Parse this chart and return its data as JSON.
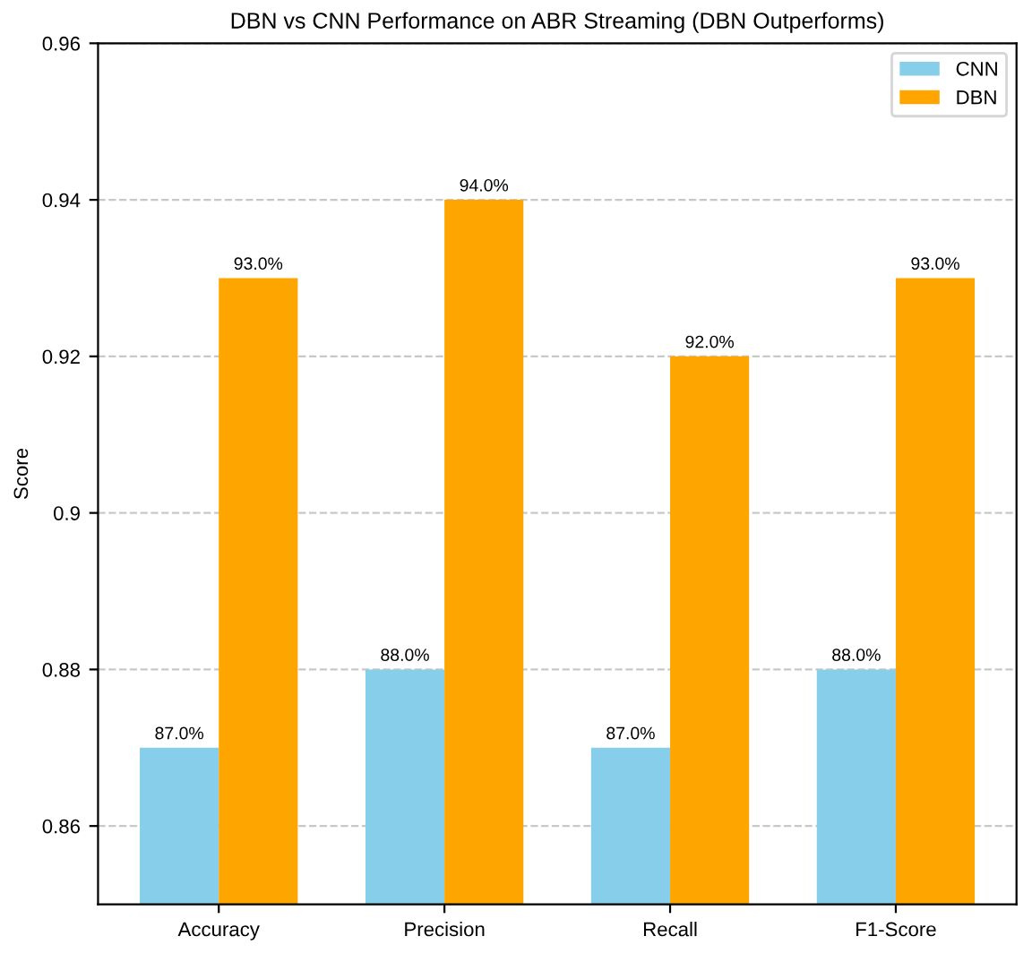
{
  "chart_data": {
    "type": "bar",
    "title": "DBN vs CNN Performance on ABR Streaming (DBN Outperforms)",
    "ylabel": "Score",
    "categories": [
      "Accuracy",
      "Precision",
      "Recall",
      "F1-Score"
    ],
    "series": [
      {
        "name": "CNN",
        "color": "#87ceeb",
        "values": [
          0.87,
          0.88,
          0.87,
          0.88
        ],
        "value_labels": [
          "87.0%",
          "88.0%",
          "87.0%",
          "88.0%"
        ]
      },
      {
        "name": "DBN",
        "color": "#ffa500",
        "values": [
          0.93,
          0.94,
          0.92,
          0.93
        ],
        "value_labels": [
          "93.0%",
          "94.0%",
          "92.0%",
          "93.0%"
        ]
      }
    ],
    "ylim": [
      0.85,
      0.96
    ],
    "yticks": [
      0.86,
      0.88,
      0.9,
      0.92,
      0.94,
      0.96
    ],
    "grid": "y",
    "legend": "top right"
  }
}
